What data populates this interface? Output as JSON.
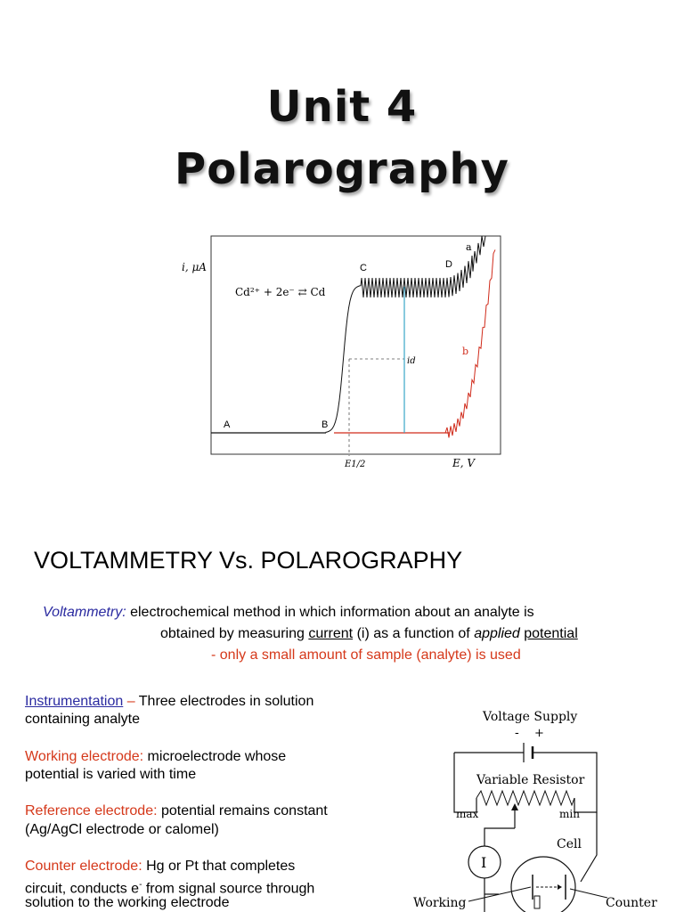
{
  "title": {
    "line1": "Unit 4",
    "line2": "Polarography"
  },
  "polarogram": {
    "ylabel": "i, μA",
    "xlabel": "E, V",
    "reaction": "Cd²⁺ + 2e⁻ ⇄ Cd",
    "point_labels": [
      "A",
      "B",
      "C",
      "D"
    ],
    "curve_labels": [
      "a",
      "b"
    ],
    "id_label": "id",
    "e_half_label": "E1/2",
    "colors": {
      "curve_a": "#111111",
      "curve_b": "#d02a1a",
      "id_line": "#3aa6c8"
    }
  },
  "section_heading": "VOLTAMMETRY  Vs. POLAROGRAPHY",
  "voltammetry": {
    "term": "Voltammetry:",
    "text1": " electrochemical method in which information about an analyte is",
    "text2a": "obtained by measuring ",
    "current": "current",
    "text2b": " (i) as a function of ",
    "applied": "applied",
    "potential": "potential",
    "note": "- only a small amount of sample (analyte) is used"
  },
  "instrumentation": {
    "term": "Instrumentation",
    "dash": " – ",
    "text1": "Three electrodes in solution",
    "text2": "containing analyte"
  },
  "working": {
    "term": "Working electrode:",
    "text1": "  microelectrode whose",
    "text2": "potential is varied with time"
  },
  "reference": {
    "term": "Reference electrode:",
    "text1": " potential remains constant",
    "text2": "(Ag/AgCl electrode or calomel)"
  },
  "counter": {
    "term": "Counter electrode:",
    "text1a": "  Hg or Pt that completes",
    "text2a": "circuit, conducts e",
    "text2sup": "-",
    "text2b": " from signal source through",
    "text3": "solution to the working electrode"
  },
  "circuit": {
    "voltage_supply": "Voltage Supply",
    "minus": "-",
    "plus": "+",
    "variable_resistor": "Variable Resistor",
    "max": "max",
    "min": "min",
    "cell": "Cell",
    "ammeter": "I",
    "working": "Working",
    "counter": "Counter"
  }
}
